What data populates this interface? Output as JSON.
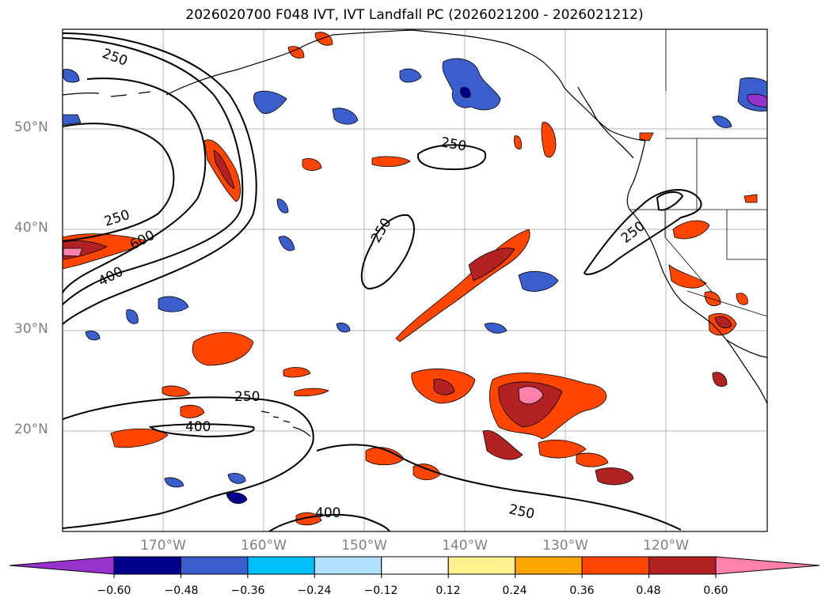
{
  "title": "2026020700 F048 IVT, IVT Landfall PC (2026021200 - 2026021212)",
  "map": {
    "lat_labels": [
      "50°N",
      "40°N",
      "30°N",
      "20°N"
    ],
    "lon_labels": [
      "170°W",
      "160°W",
      "150°W",
      "140°W",
      "130°W",
      "120°W"
    ],
    "contour_labels": [
      "250",
      "250",
      "600",
      "400",
      "250",
      "250",
      "250",
      "250",
      "400",
      "400",
      "250"
    ]
  },
  "colorbar": {
    "tick_labels": [
      "−0.60",
      "−0.48",
      "−0.36",
      "−0.24",
      "−0.12",
      "0.12",
      "0.24",
      "0.36",
      "0.48",
      "0.60"
    ],
    "colors": [
      "#9932cc",
      "#00008b",
      "#3a5fcd",
      "#00bfff",
      "#b0e2ff",
      "#ffffff",
      "#fff08f",
      "#ffa500",
      "#ff4500",
      "#b22222",
      "#ff82ab"
    ]
  }
}
